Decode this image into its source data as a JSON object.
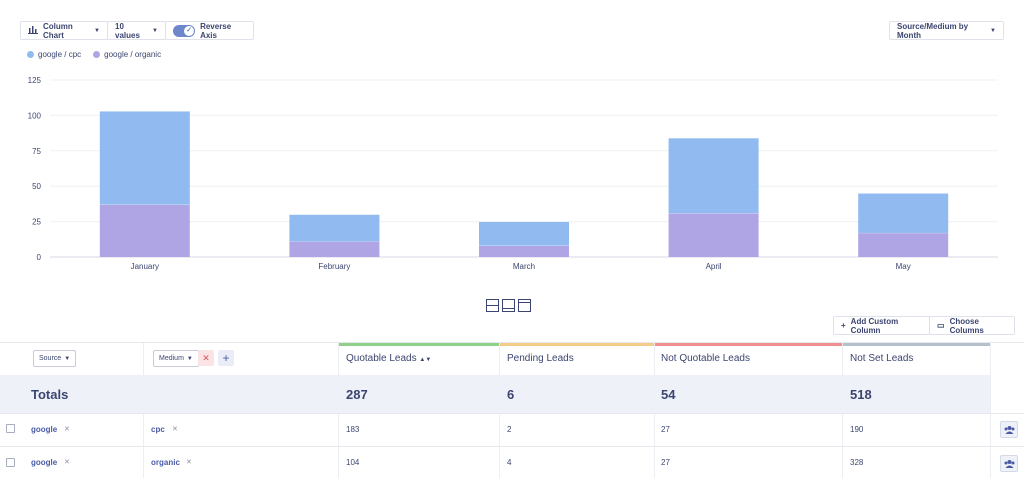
{
  "toolbar": {
    "chart_type_label": "Column Chart",
    "values_label": "10 values",
    "reverse_axis_label": "Reverse Axis",
    "group_by_label": "Source/Medium by Month"
  },
  "legend": [
    {
      "name": "google / cpc",
      "color": "#90baf0"
    },
    {
      "name": "google / organic",
      "color": "#b0a5e4"
    }
  ],
  "chart_data": {
    "type": "bar",
    "stacked": true,
    "categories": [
      "January",
      "February",
      "March",
      "April",
      "May"
    ],
    "series": [
      {
        "name": "google / organic",
        "values": [
          37,
          11,
          8,
          31,
          17
        ],
        "color": "#b0a5e4"
      },
      {
        "name": "google / cpc",
        "values": [
          66,
          19,
          17,
          53,
          28
        ],
        "color": "#90baf0"
      }
    ],
    "ylim": [
      0,
      125
    ],
    "yticks": [
      0,
      25,
      50,
      75,
      100,
      125
    ],
    "grid": true,
    "legend_position": "top-left"
  },
  "table_actions": {
    "add_column": "Add Custom Column",
    "choose_columns": "Choose Columns"
  },
  "filters": {
    "source": "Source",
    "medium": "Medium"
  },
  "columns": [
    {
      "label": "Quotable Leads",
      "color": "#8fd08a"
    },
    {
      "label": "Pending Leads",
      "color": "#f3cc8a"
    },
    {
      "label": "Not Quotable Leads",
      "color": "#ef8f8f"
    },
    {
      "label": "Not Set Leads",
      "color": "#b6c0cc"
    }
  ],
  "totals": {
    "label": "Totals",
    "values": [
      "287",
      "6",
      "54",
      "518"
    ]
  },
  "rows": [
    {
      "source": "google",
      "medium": "cpc",
      "values": [
        "183",
        "2",
        "27",
        "190"
      ]
    },
    {
      "source": "google",
      "medium": "organic",
      "values": [
        "104",
        "4",
        "27",
        "328"
      ]
    }
  ]
}
